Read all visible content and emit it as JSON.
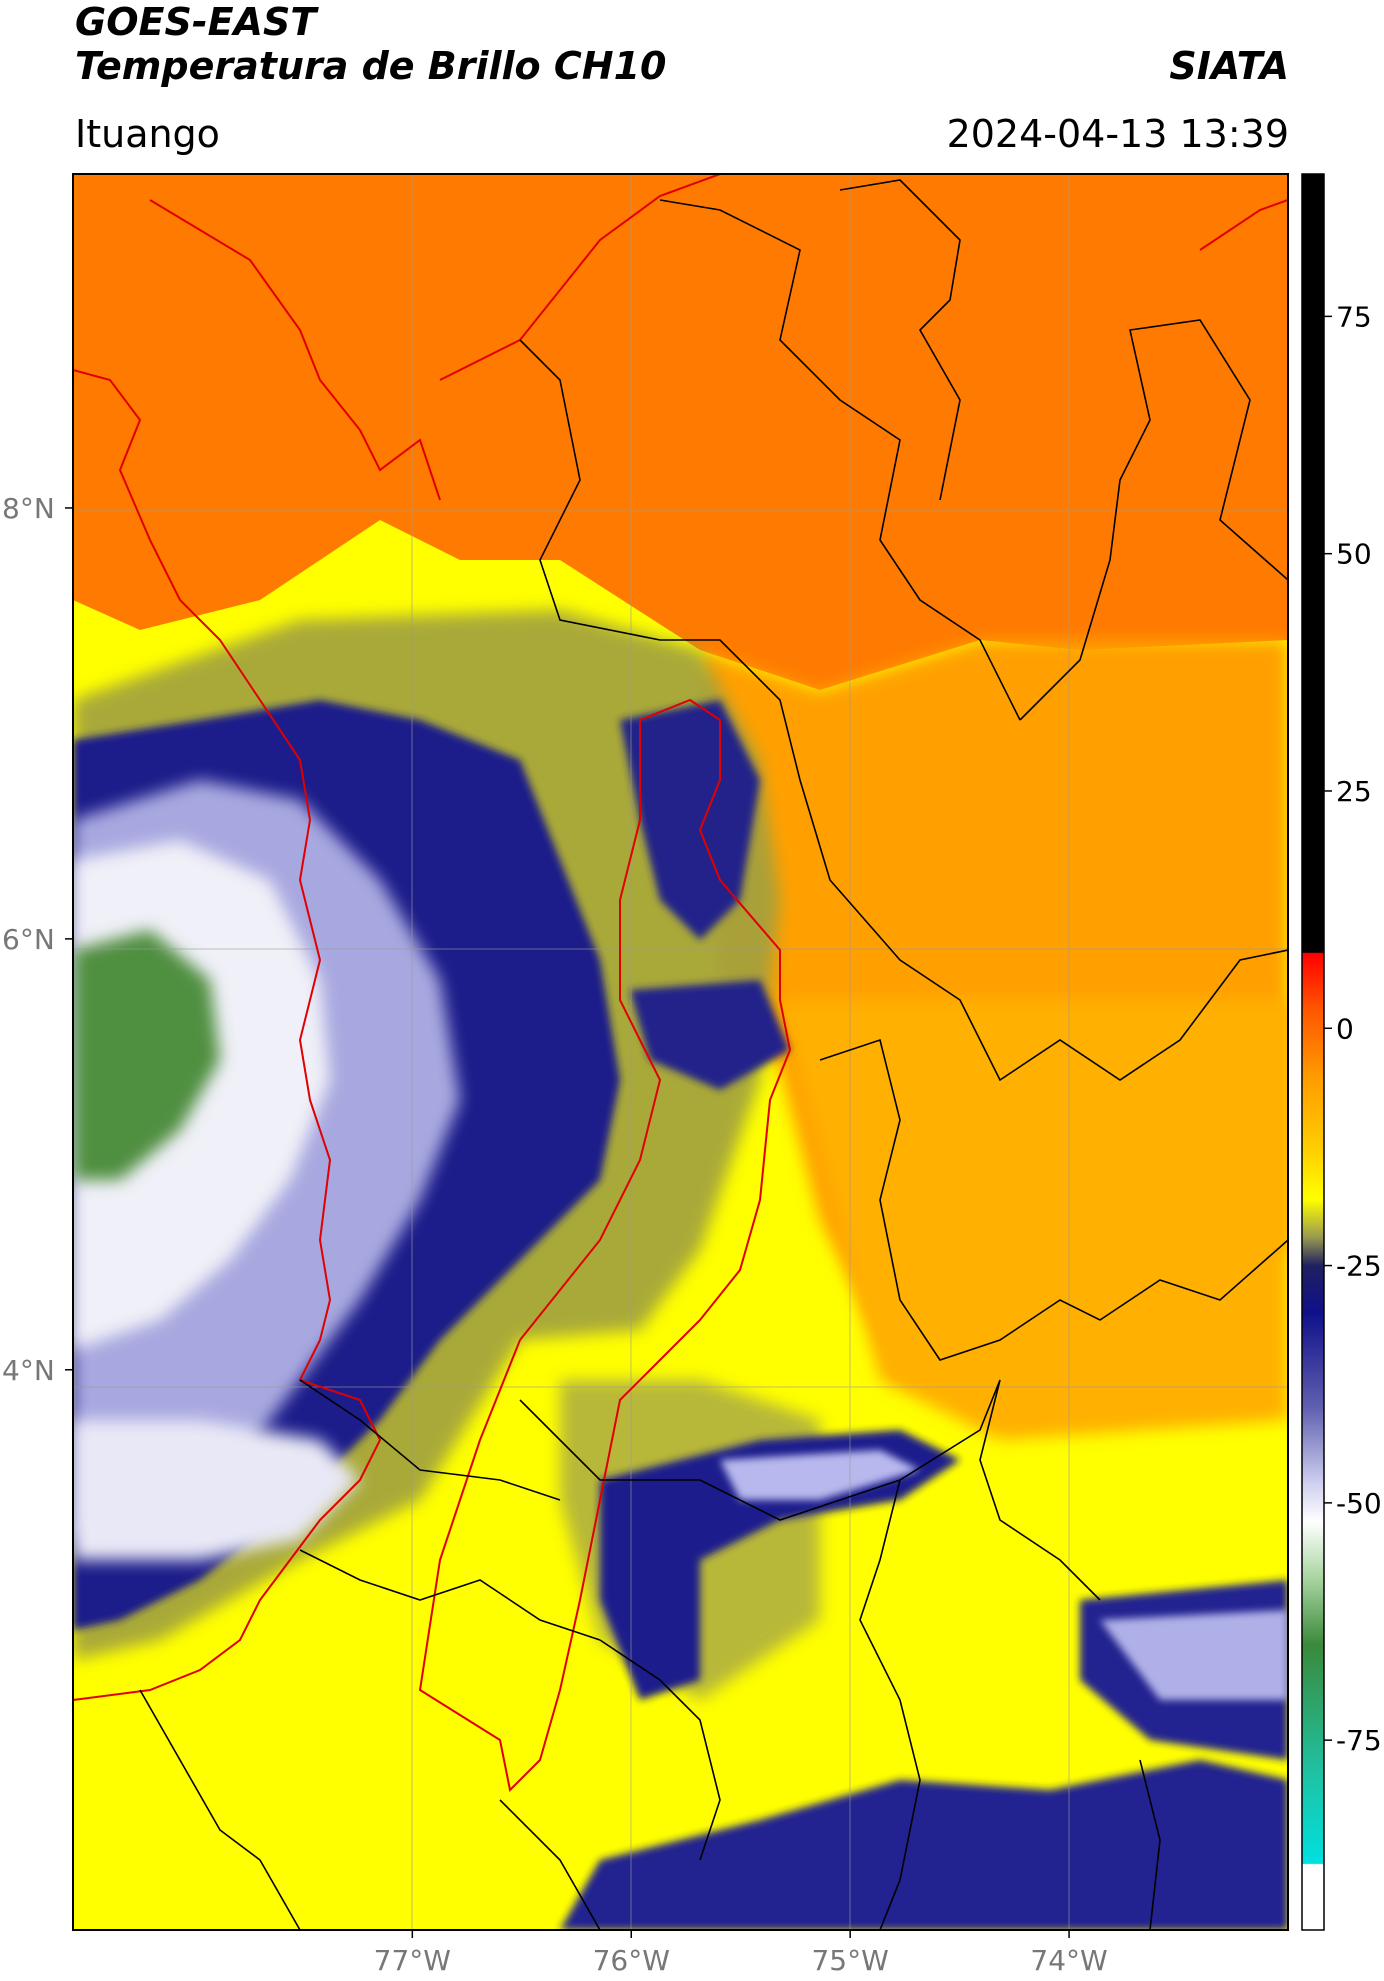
{
  "header": {
    "satellite": "GOES-EAST",
    "product": "Temperatura de Brillo CH10",
    "organization": "SIATA",
    "location": "Ituango",
    "timestamp": "2024-04-13 13:39"
  },
  "map": {
    "lon_range": [
      -78.55,
      -73.0
    ],
    "lat_range": [
      1.4,
      9.55
    ],
    "lon_ticks": [
      {
        "value": -77,
        "label": "77°W"
      },
      {
        "value": -76,
        "label": "76°W"
      },
      {
        "value": -75,
        "label": "75°W"
      },
      {
        "value": -74,
        "label": "74°W"
      }
    ],
    "lat_ticks": [
      {
        "value": 8,
        "label": "8°N"
      },
      {
        "value": 6,
        "label": "6°N"
      },
      {
        "value": 4,
        "label": "4°N"
      }
    ],
    "grid": true,
    "colors": {
      "warm": "#ff7a00",
      "mid": "#ffb300",
      "yellow": "#ffff00",
      "olive": "#9a9a40",
      "navy": "#1a1a80",
      "lavender": "#b8b8e6",
      "white": "#f4f4f4",
      "green": "#4a8a3a",
      "border_red": "#e00000",
      "border_black": "#000000"
    }
  },
  "colorbar": {
    "value_range": [
      -95,
      90
    ],
    "ticks": [
      {
        "value": 75,
        "label": "75"
      },
      {
        "value": 50,
        "label": "50"
      },
      {
        "value": 25,
        "label": "25"
      },
      {
        "value": 0,
        "label": "0"
      },
      {
        "value": -25,
        "label": "-25"
      },
      {
        "value": -50,
        "label": "-50"
      },
      {
        "value": -75,
        "label": "-75"
      }
    ],
    "stops": [
      {
        "value": 90,
        "color": "#000000"
      },
      {
        "value": 8,
        "color": "#000000"
      },
      {
        "value": 7.9,
        "color": "#ff0000"
      },
      {
        "value": 2,
        "color": "#ff5500"
      },
      {
        "value": -5,
        "color": "#ff9a00"
      },
      {
        "value": -13,
        "color": "#ffd000"
      },
      {
        "value": -18,
        "color": "#ffff00"
      },
      {
        "value": -22,
        "color": "#9a9a50"
      },
      {
        "value": -25,
        "color": "#202060"
      },
      {
        "value": -30,
        "color": "#10108a"
      },
      {
        "value": -40,
        "color": "#6060b0"
      },
      {
        "value": -48,
        "color": "#d0d0f0"
      },
      {
        "value": -52,
        "color": "#ffffff"
      },
      {
        "value": -58,
        "color": "#a8d4a0"
      },
      {
        "value": -65,
        "color": "#3a8a3a"
      },
      {
        "value": -78,
        "color": "#20c0a0"
      },
      {
        "value": -88,
        "color": "#00e0e0"
      },
      {
        "value": -88.1,
        "color": "#ffffff"
      },
      {
        "value": -95,
        "color": "#ffffff"
      }
    ]
  }
}
